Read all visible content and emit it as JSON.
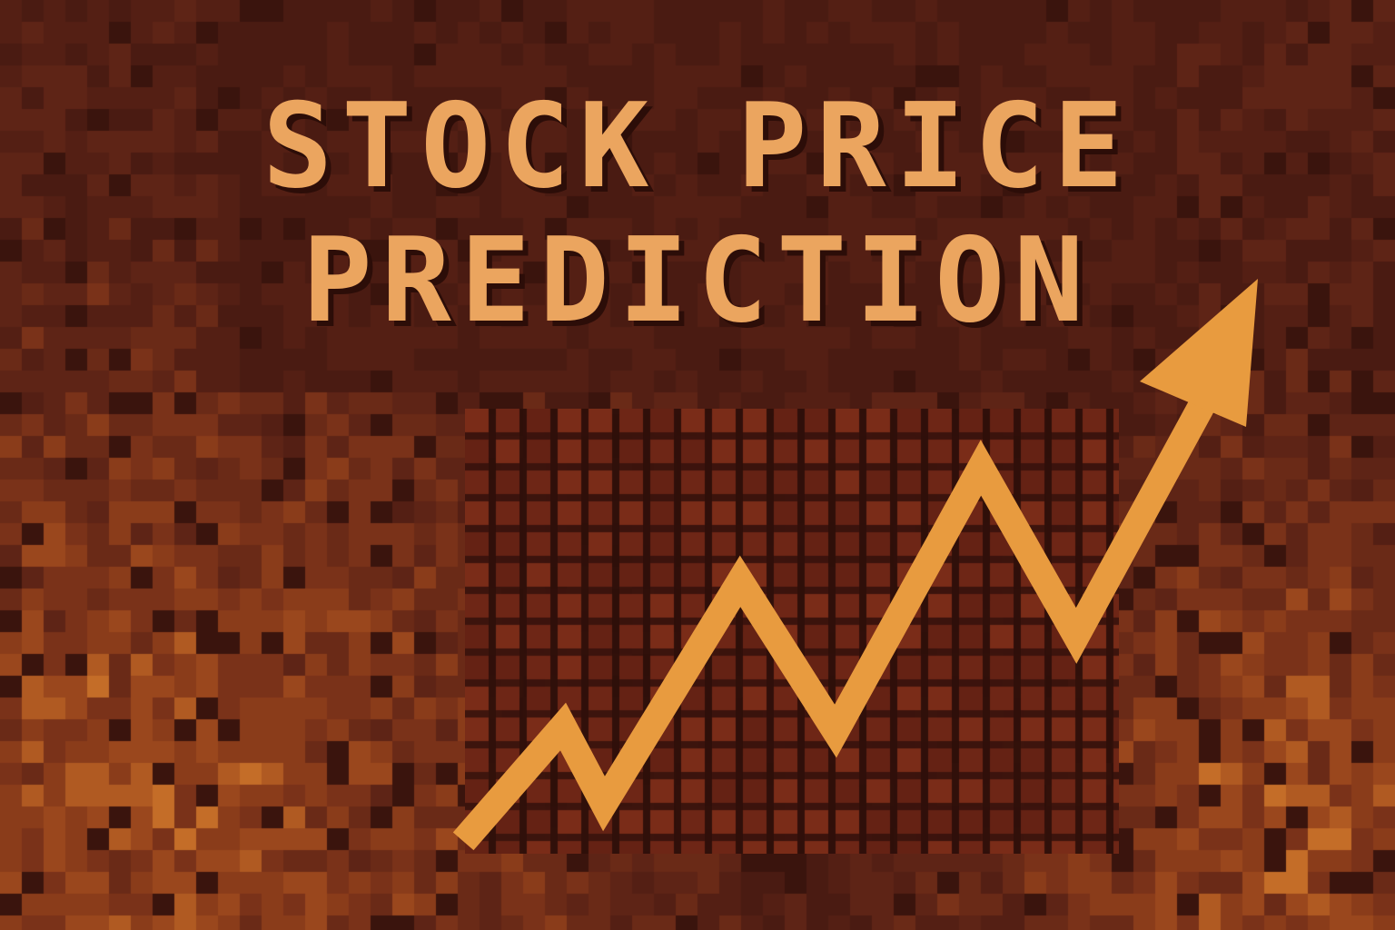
{
  "title": {
    "line1": "STOCK PRICE",
    "line2": "PREDICTION"
  },
  "colors": {
    "background": "#4a1b12",
    "title_text": "#eba55f",
    "arrow": "#e89b3f",
    "grid_cell": "#6e2616",
    "pixel_light": "#a8521f",
    "pixel_mid": "#8a3c1a",
    "pixel_dark": "#5a2014"
  },
  "icons": {
    "trend_arrow": "trend-up-arrow-icon"
  }
}
